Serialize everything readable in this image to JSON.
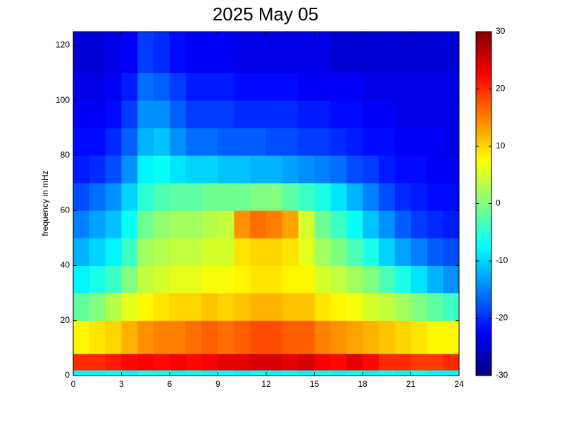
{
  "chart_data": {
    "type": "heatmap",
    "title": "2025 May 05",
    "y_label": "frequency in mHz",
    "colormap": "jet",
    "xbins": [
      0,
      1,
      2,
      3,
      4,
      5,
      6,
      7,
      8,
      9,
      10,
      11,
      12,
      13,
      14,
      15,
      16,
      17,
      18,
      19,
      20,
      21,
      22,
      23,
      24
    ],
    "ybins": [
      0,
      2,
      8,
      20,
      30,
      40,
      50,
      60,
      70,
      80,
      90,
      100,
      110,
      125
    ],
    "xlim": [
      0,
      24
    ],
    "xticks": [
      0,
      3,
      6,
      9,
      12,
      15,
      18,
      21,
      24
    ],
    "ylim": [
      0,
      125
    ],
    "yticks": [
      0,
      20,
      40,
      60,
      80,
      100,
      120
    ],
    "zlim": [
      -30,
      30
    ],
    "zticks": [
      -30,
      -20,
      -10,
      0,
      10,
      20,
      30
    ],
    "values": [
      [
        -8,
        -8,
        -7,
        -8,
        -6,
        -7,
        -8,
        -7,
        -8,
        -7,
        -8,
        -7,
        -8,
        -7,
        -8,
        -7,
        -8,
        -7,
        -8,
        -7,
        -8,
        -7,
        -8,
        -8
      ],
      [
        20,
        20,
        21,
        22,
        23,
        22,
        23,
        22,
        23,
        24,
        24,
        25,
        25,
        24,
        25,
        23,
        22,
        24,
        22,
        20,
        20,
        19,
        19,
        20
      ],
      [
        8,
        9,
        10,
        12,
        14,
        15,
        15,
        16,
        17,
        16,
        17,
        18,
        18,
        17,
        17,
        15,
        14,
        13,
        12,
        11,
        10,
        9,
        8,
        8
      ],
      [
        -2,
        0,
        3,
        6,
        8,
        9,
        10,
        10,
        11,
        10,
        11,
        12,
        12,
        11,
        11,
        9,
        8,
        7,
        5,
        4,
        2,
        0,
        -2,
        -4
      ],
      [
        -8,
        -6,
        -4,
        0,
        4,
        5,
        6,
        6,
        7,
        7,
        8,
        9,
        9,
        8,
        8,
        5,
        4,
        2,
        0,
        -3,
        -6,
        -9,
        -12,
        -14
      ],
      [
        -12,
        -10,
        -8,
        -4,
        2,
        3,
        4,
        4,
        5,
        5,
        9,
        10,
        10,
        9,
        6,
        2,
        0,
        -3,
        -6,
        -10,
        -13,
        -15,
        -17,
        -18
      ],
      [
        -15,
        -13,
        -11,
        -7,
        -1,
        1,
        2,
        2,
        3,
        4,
        14,
        16,
        15,
        13,
        5,
        -1,
        -4,
        -7,
        -11,
        -14,
        -17,
        -19,
        -20,
        -21
      ],
      [
        -18,
        -16,
        -14,
        -10,
        -5,
        -3,
        -2,
        -2,
        -1,
        -1,
        -1,
        0,
        0,
        -2,
        -4,
        -6,
        -9,
        -12,
        -15,
        -18,
        -20,
        -21,
        -22,
        -22
      ],
      [
        -21,
        -20,
        -18,
        -14,
        -8,
        -7,
        -9,
        -10,
        -10,
        -11,
        -11,
        -12,
        -12,
        -13,
        -14,
        -15,
        -16,
        -18,
        -19,
        -21,
        -22,
        -22,
        -23,
        -23
      ],
      [
        -22,
        -22,
        -20,
        -17,
        -12,
        -11,
        -14,
        -16,
        -16,
        -17,
        -17,
        -17,
        -18,
        -18,
        -19,
        -19,
        -20,
        -21,
        -22,
        -22,
        -23,
        -23,
        -23,
        -24
      ],
      [
        -23,
        -23,
        -22,
        -19,
        -14,
        -14,
        -17,
        -19,
        -19,
        -19,
        -20,
        -20,
        -20,
        -20,
        -21,
        -21,
        -22,
        -22,
        -23,
        -23,
        -24,
        -24,
        -24,
        -24
      ],
      [
        -24,
        -24,
        -23,
        -21,
        -16,
        -17,
        -19,
        -21,
        -21,
        -21,
        -22,
        -22,
        -22,
        -22,
        -23,
        -23,
        -23,
        -23,
        -24,
        -24,
        -24,
        -24,
        -24,
        -24
      ],
      [
        -25,
        -25,
        -24,
        -23,
        -19,
        -20,
        -22,
        -23,
        -23,
        -23,
        -24,
        -24,
        -24,
        -24,
        -24,
        -24,
        -25,
        -25,
        -25,
        -25,
        -25,
        -25,
        -25,
        -25
      ]
    ]
  }
}
